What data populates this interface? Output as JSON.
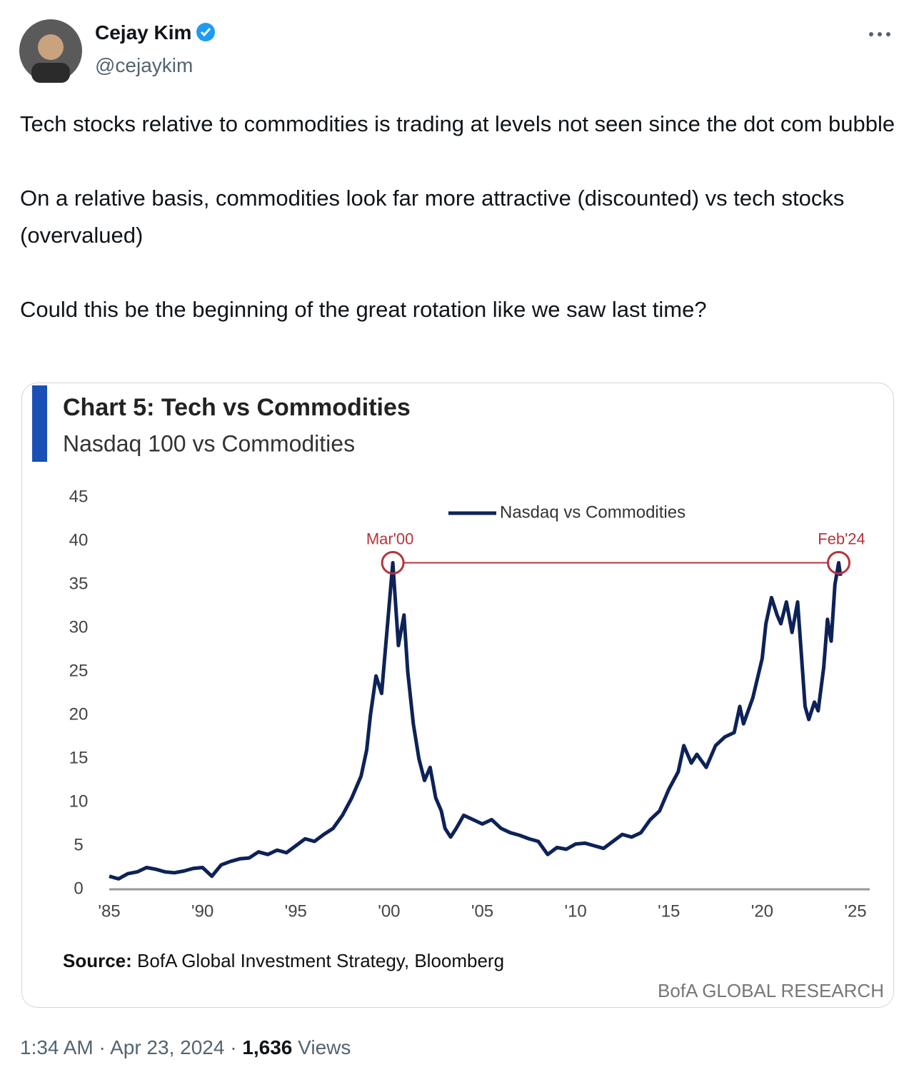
{
  "author": {
    "name": "Cejay Kim",
    "handle": "@cejaykim"
  },
  "tweet": {
    "paragraphs": [
      "Tech stocks relative to commodities is trading at levels not seen since the dot com bubble",
      "On a relative basis, commodities look far more attractive (discounted) vs tech stocks (overvalued)",
      "Could this be the beginning of the great rotation like we saw last time?"
    ]
  },
  "chart_data": {
    "type": "line",
    "title": "Chart 5: Tech vs Commodities",
    "subtitle": "Nasdaq 100 vs Commodities",
    "x": [
      1985.0,
      1985.5,
      1986.0,
      1986.5,
      1987.0,
      1987.5,
      1988.0,
      1988.5,
      1989.0,
      1989.5,
      1990.0,
      1990.5,
      1991.0,
      1991.5,
      1992.0,
      1992.5,
      1993.0,
      1993.5,
      1994.0,
      1994.5,
      1995.0,
      1995.5,
      1996.0,
      1996.5,
      1997.0,
      1997.5,
      1998.0,
      1998.5,
      1998.8,
      1999.0,
      1999.3,
      1999.6,
      1999.9,
      2000.2,
      2000.5,
      2000.8,
      2001.0,
      2001.3,
      2001.6,
      2001.9,
      2002.2,
      2002.5,
      2002.8,
      2003.0,
      2003.3,
      2003.6,
      2004.0,
      2004.5,
      2005.0,
      2005.5,
      2006.0,
      2006.5,
      2007.0,
      2007.5,
      2008.0,
      2008.5,
      2009.0,
      2009.5,
      2010.0,
      2010.5,
      2011.0,
      2011.5,
      2012.0,
      2012.5,
      2013.0,
      2013.5,
      2014.0,
      2014.5,
      2015.0,
      2015.5,
      2015.8,
      2016.2,
      2016.5,
      2017.0,
      2017.5,
      2018.0,
      2018.5,
      2018.8,
      2019.0,
      2019.5,
      2020.0,
      2020.2,
      2020.5,
      2020.8,
      2021.0,
      2021.3,
      2021.6,
      2021.9,
      2022.1,
      2022.3,
      2022.5,
      2022.8,
      2023.0,
      2023.3,
      2023.5,
      2023.7,
      2023.9,
      2024.1,
      2024.2
    ],
    "series": [
      {
        "name": "Nasdaq vs Commodities",
        "color": "#0d2257",
        "values": [
          1.5,
          1.2,
          1.8,
          2.0,
          2.5,
          2.3,
          2.0,
          1.9,
          2.1,
          2.4,
          2.5,
          1.5,
          2.8,
          3.2,
          3.5,
          3.6,
          4.3,
          4.0,
          4.5,
          4.2,
          5.0,
          5.8,
          5.5,
          6.3,
          7.0,
          8.5,
          10.5,
          13.0,
          16.0,
          20.0,
          24.5,
          22.5,
          30.0,
          37.5,
          28.0,
          31.5,
          25.0,
          19.0,
          15.0,
          12.5,
          14.0,
          10.5,
          9.0,
          7.0,
          6.0,
          7.0,
          8.5,
          8.0,
          7.5,
          8.0,
          7.0,
          6.5,
          6.2,
          5.8,
          5.5,
          4.0,
          4.8,
          4.6,
          5.2,
          5.3,
          5.0,
          4.7,
          5.5,
          6.3,
          6.0,
          6.5,
          8.0,
          9.0,
          11.5,
          13.5,
          16.5,
          14.5,
          15.5,
          14.0,
          16.5,
          17.5,
          18.0,
          21.0,
          19.0,
          22.0,
          26.5,
          30.5,
          33.5,
          31.5,
          30.5,
          33.0,
          29.5,
          33.0,
          27.0,
          21.0,
          19.5,
          21.5,
          20.5,
          25.5,
          31.0,
          28.5,
          35.0,
          37.5,
          36.0
        ]
      }
    ],
    "xlim": [
      1985,
      2025
    ],
    "xticks": [
      {
        "value": 1985,
        "label": "'85"
      },
      {
        "value": 1990,
        "label": "'90"
      },
      {
        "value": 1995,
        "label": "'95"
      },
      {
        "value": 2000,
        "label": "'00"
      },
      {
        "value": 2005,
        "label": "'05"
      },
      {
        "value": 2010,
        "label": "'10"
      },
      {
        "value": 2015,
        "label": "'15"
      },
      {
        "value": 2020,
        "label": "'20"
      },
      {
        "value": 2025,
        "label": "'25"
      }
    ],
    "ylim": [
      0,
      45
    ],
    "yticks": [
      0,
      5,
      10,
      15,
      20,
      25,
      30,
      35,
      40,
      45
    ],
    "annotation_color": "#b5343c",
    "annotations": [
      {
        "label": "Mar'00",
        "x": 2000.2,
        "y": 37.5
      },
      {
        "label": "Feb'24",
        "x": 2024.1,
        "y": 37.5
      }
    ],
    "source_label": "Source:",
    "source": "BofA Global Investment Strategy, Bloomberg",
    "brand": "BofA GLOBAL RESEARCH"
  },
  "footer": {
    "time": "1:34 AM",
    "separator": "·",
    "date": "Apr 23, 2024",
    "views_count": "1,636",
    "views_label": "Views"
  }
}
